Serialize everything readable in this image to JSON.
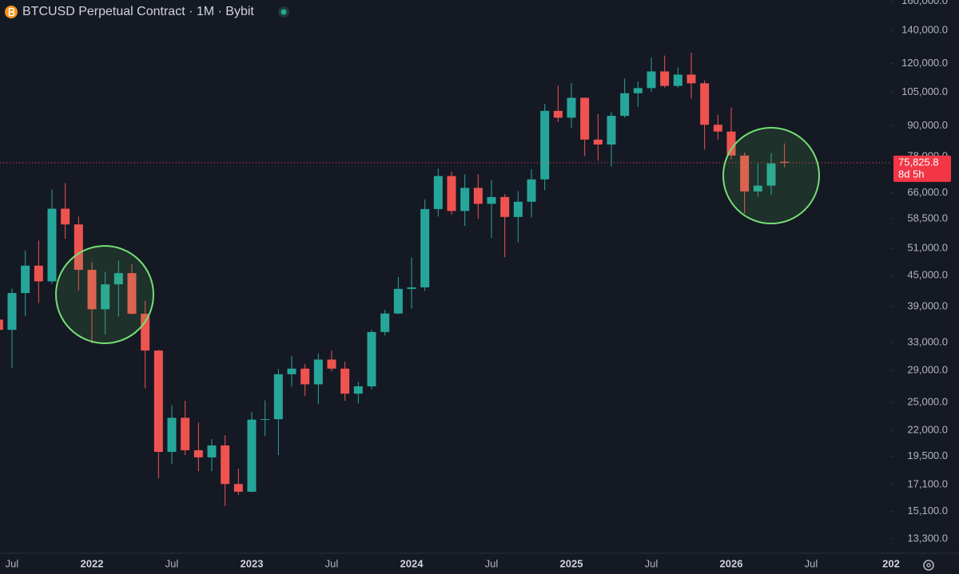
{
  "chart_data": {
    "type": "candlestick",
    "title": "BTCUSD Perpetual Contract · 1M · Bybit",
    "log_scale": true,
    "up_color": "#26a69a",
    "down_color": "#ef5350",
    "categories": [
      null,
      "Jul",
      null,
      null,
      null,
      null,
      null,
      "2022",
      null,
      null,
      null,
      null,
      null,
      "Jul",
      null,
      null,
      null,
      null,
      null,
      "2023",
      null,
      null,
      null,
      null,
      null,
      "Jul",
      null,
      null,
      null,
      null,
      null,
      "2024",
      null,
      null,
      null,
      null,
      null,
      "Jul",
      null,
      null,
      null,
      null,
      null,
      "2025",
      null,
      null,
      null,
      null,
      null,
      "Jul",
      null,
      null,
      null,
      null,
      null,
      "2026",
      null,
      null,
      null,
      null,
      null,
      "Jul",
      null,
      null,
      null,
      null,
      null,
      "202"
    ],
    "open": [
      36700,
      35000,
      41500,
      47100,
      43800,
      61300,
      57000,
      46200,
      38500,
      43200,
      45500,
      37700,
      31800,
      19900,
      23300,
      20050,
      19400,
      20500,
      17150,
      16550,
      23100,
      23150,
      28500,
      29250,
      27200,
      30500,
      29250,
      26050,
      26950,
      34650,
      37750,
      42300,
      42600,
      61200,
      71300,
      60650,
      67500,
      62700,
      64700,
      59000,
      63300,
      70200,
      96400,
      93400,
      102400,
      84400,
      82500,
      94200,
      104600,
      107100,
      115700,
      108200,
      114000,
      109500,
      90400,
      87600,
      78400,
      66400,
      68200,
      76200,
      null,
      null,
      null,
      null,
      null,
      null,
      null,
      null
    ],
    "high": [
      41300,
      42400,
      50500,
      52900,
      67000,
      69000,
      59100,
      47900,
      45800,
      48200,
      47400,
      40000,
      31900,
      24700,
      25200,
      22800,
      21100,
      21500,
      18400,
      23900,
      25250,
      29200,
      31000,
      29850,
      31400,
      31800,
      30200,
      27500,
      35000,
      38400,
      44700,
      48900,
      64000,
      73800,
      72800,
      71900,
      71900,
      70000,
      65600,
      66500,
      73600,
      99600,
      108300,
      109600,
      102500,
      95000,
      95700,
      111900,
      110500,
      123200,
      124500,
      117900,
      126200,
      111000,
      94600,
      97900,
      79500,
      75600,
      79300,
      82900,
      null,
      null,
      null,
      null,
      null,
      null,
      null,
      null
    ],
    "low": [
      28800,
      29300,
      37300,
      39600,
      43300,
      53300,
      42000,
      32900,
      34300,
      37200,
      37600,
      26700,
      17600,
      18800,
      19600,
      18200,
      18200,
      15500,
      16300,
      16500,
      21400,
      19600,
      26900,
      25800,
      24800,
      28900,
      25200,
      24900,
      26600,
      34100,
      37650,
      38600,
      41900,
      59100,
      59600,
      56600,
      58500,
      53500,
      49000,
      52500,
      58900,
      66800,
      91500,
      89200,
      78200,
      76600,
      74500,
      93400,
      98200,
      105300,
      107300,
      107300,
      102000,
      80600,
      84400,
      77000,
      60000,
      64800,
      65300,
      74200,
      null,
      null,
      null,
      null,
      null,
      null,
      null,
      null
    ],
    "close": [
      35000,
      41500,
      47100,
      43800,
      61300,
      57000,
      46200,
      38500,
      43200,
      45500,
      37700,
      31800,
      19900,
      23300,
      20050,
      19400,
      20500,
      17150,
      16550,
      23100,
      23150,
      28500,
      29250,
      27200,
      30500,
      29250,
      26050,
      26950,
      34650,
      37750,
      42300,
      42600,
      61200,
      71300,
      60650,
      67500,
      62700,
      64700,
      59000,
      63300,
      70200,
      96400,
      93400,
      102400,
      84400,
      82500,
      94200,
      104600,
      107100,
      115700,
      108200,
      114000,
      109500,
      90400,
      87600,
      78400,
      66400,
      68200,
      75600,
      75825.8,
      null,
      null,
      null,
      null,
      null,
      null,
      null,
      null
    ],
    "last_price_label": "75,825.8",
    "countdown": "8d 5h",
    "ylim": [
      12450,
      161000
    ],
    "yticks": [
      {
        "value": 160000,
        "label": "160,000.0"
      },
      {
        "value": 140000,
        "label": "140,000.0"
      },
      {
        "value": 120000,
        "label": "120,000.0"
      },
      {
        "value": 105000,
        "label": "105,000.0"
      },
      {
        "value": 90000,
        "label": "90,000.0"
      },
      {
        "value": 78000,
        "label": "78,000.0"
      },
      {
        "value": 66000,
        "label": "66,000.0"
      },
      {
        "value": 58500,
        "label": "58,500.0"
      },
      {
        "value": 51000,
        "label": "51,000.0"
      },
      {
        "value": 45000,
        "label": "45,000.0"
      },
      {
        "value": 39000,
        "label": "39,000.0"
      },
      {
        "value": 33000,
        "label": "33,000.0"
      },
      {
        "value": 29000,
        "label": "29,000.0"
      },
      {
        "value": 25000,
        "label": "25,000.0"
      },
      {
        "value": 22000,
        "label": "22,000.0"
      },
      {
        "value": 19500,
        "label": "19,500.0"
      },
      {
        "value": 17100,
        "label": "17,100.0"
      },
      {
        "value": 15100,
        "label": "15,100.0"
      },
      {
        "value": 13300,
        "label": "13,300.0"
      }
    ]
  }
}
